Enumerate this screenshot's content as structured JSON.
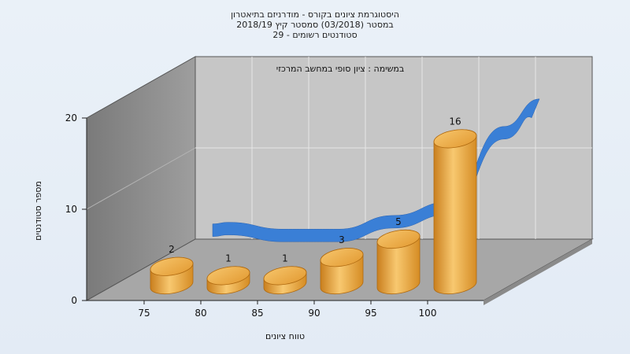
{
  "chart_data": {
    "type": "bar",
    "title": [
      "היסטוגרמת ציונים בקורס - מודרניזם בתיאטרון",
      "במסטר  (03/2018)  סמסטר קיץ 2018/19",
      "סטודנטים רשומים - 29"
    ],
    "annotation": "במשימה : ציון סופי במחשב המרכזי",
    "categories": [
      "75",
      "80",
      "85",
      "90",
      "95",
      "100"
    ],
    "values": [
      2,
      1,
      1,
      3,
      5,
      16
    ],
    "value_labels": [
      "2",
      "1",
      "1",
      "3",
      "5",
      "16"
    ],
    "y_ticks": [
      "0",
      "10",
      "20"
    ],
    "ylim": [
      0,
      20
    ],
    "xlabel": "טווח ציונים",
    "ylabel": "מספר סטודנטים",
    "trend_line": true,
    "grid": true
  },
  "colors": {
    "bar": "#f0b04a",
    "trend": "#2f74d0",
    "back_wall": "#c8c8c8",
    "side_wall": "#8f8f8f",
    "floor": "#a9a9a9",
    "background": "#e6edf6"
  }
}
